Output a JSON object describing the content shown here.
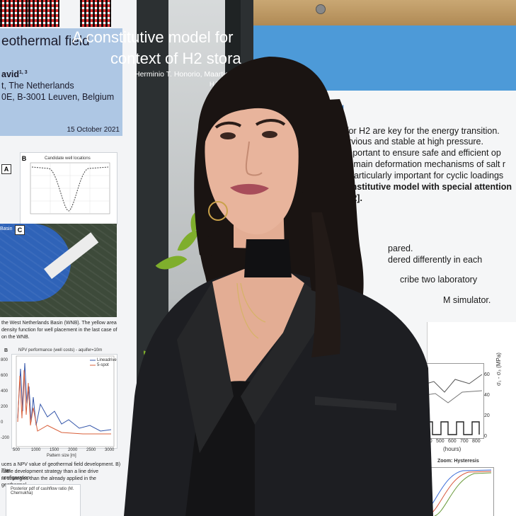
{
  "left_poster": {
    "title": "eothermal field",
    "author_line": "avid",
    "author_sup": "1, 3",
    "affil_1": "t, The Netherlands",
    "affil_2": "0E, B-3001 Leuven, Belgium",
    "date": "15 October 2021",
    "panel_a": "A",
    "panel_b": "B",
    "panel_c": "C",
    "chart_b_title": "Candidate well locations",
    "map_label": "Basin",
    "caption_1": "the West Netherlands Basin (WNB). The yellow area",
    "caption_2": "density function for well placement in the last case of",
    "caption_3": "on the WNB.",
    "panel_b2": "B",
    "npv_title": "NPV performance (well costs) - aquifer=10m",
    "npv_legend_1": "Lineadrive",
    "npv_legend_2": "5-spot",
    "npv_xlabel": "Pattern size [m]",
    "npv_yticks": [
      "800",
      "600",
      "400",
      "200",
      "0",
      "-200"
    ],
    "npv_xticks": [
      "500",
      "1000",
      "1500",
      "2000",
      "2500",
      "3000"
    ],
    "caption_4": "uces a NPV value of geothermal field development. B) The",
    "caption_5": "itable development strategy than a line drive configuration",
    "caption_6": "nt strategies than the already applied in the geothermal",
    "bottom_chart_title": "Posterior pdf of cashflow ratio (M. Chernukha)"
  },
  "right_poster": {
    "title_1": "A constitutive model for",
    "title_2": "context of H2 stora",
    "authors": "Herminio T. Honorio, Maartje Houben",
    "email": "H.TasinafoHonor",
    "section": "N",
    "lines": [
      "for H2 are key for the energy transition.",
      "pervious and stable at high pressure.",
      "important to ensure safe and efficient op",
      "e main deformation mechanisms of salt r",
      "particularly important for cyclic loadings",
      "onstitutive model with special attention",
      "][2]."
    ],
    "lines_2": [
      "pared.",
      "dered differently in each",
      "cribe two laboratory",
      "M simulator."
    ],
    "chart_yticks": [
      "60",
      "40",
      "20",
      "0"
    ],
    "chart_ylabel": "σ₁ - σ₃ (MPa)",
    "chart_xticks": [
      "400",
      "500",
      "600",
      "700",
      "800"
    ],
    "chart_xlabel": "(hours)",
    "zoom_label": "Zoom: Hysteresis"
  },
  "colors": {
    "left_header": "#aec7e4",
    "right_header": "#4d9ad8",
    "blazer": "#1d1e22",
    "hair": "#1a1412",
    "skin": "#e8b49c",
    "wood": "#c9a773",
    "leaf": "#7fae2c"
  }
}
